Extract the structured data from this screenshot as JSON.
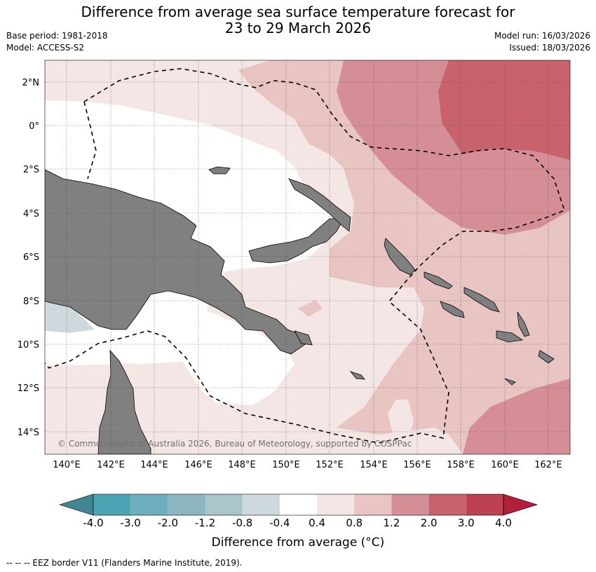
{
  "header": {
    "title_line1": "Difference from average sea surface temperature forecast for",
    "title_line2": "23 to 29 March 2026",
    "base_period": "Base period: 1981-2018",
    "model": "Model: ACCESS-S2",
    "model_run": "Model run: 16/03/2026",
    "issued": "Issued: 18/03/2026"
  },
  "map": {
    "lat_labels": [
      "2°N",
      "0°",
      "2°S",
      "4°S",
      "6°S",
      "8°S",
      "10°S",
      "12°S",
      "14°S"
    ],
    "lon_labels": [
      "140°E",
      "142°E",
      "144°E",
      "146°E",
      "148°E",
      "150°E",
      "152°E",
      "154°E",
      "156°E",
      "158°E",
      "160°E",
      "162°E"
    ],
    "copyright": "© Commonwealth of Australia 2026, Bureau of Meteorology, supported by COSPPac",
    "colors": {
      "land": "#808080",
      "neutral": "#ffffff",
      "warm_0_4_0_8": "#f5e6e6",
      "warm_0_8_1_2": "#e8c4c3",
      "warm_1_2_2_0": "#d58e96",
      "warm_2_0_3_0": "#c8636e",
      "cool_0_8_0_4": "#cdd9dc"
    }
  },
  "colorbar": {
    "tick_labels": [
      "-4.0",
      "-3.0",
      "-2.0",
      "-1.2",
      "-0.8",
      "-0.4",
      "0.4",
      "0.8",
      "1.2",
      "2.0",
      "3.0",
      "4.0"
    ],
    "colors": [
      "#418693",
      "#4ba5b5",
      "#6eafbe",
      "#8bb6c1",
      "#a7c5ca",
      "#cdd9dc",
      "#ffffff",
      "#f5e6e6",
      "#e8c4c3",
      "#d58e96",
      "#c8636e",
      "#be4153",
      "#b21f3a"
    ],
    "title": "Difference from average (°C)"
  },
  "footer": {
    "legend_text": "-- -- -- EEZ border V11 (Flanders Marine Institute, 2019)."
  }
}
